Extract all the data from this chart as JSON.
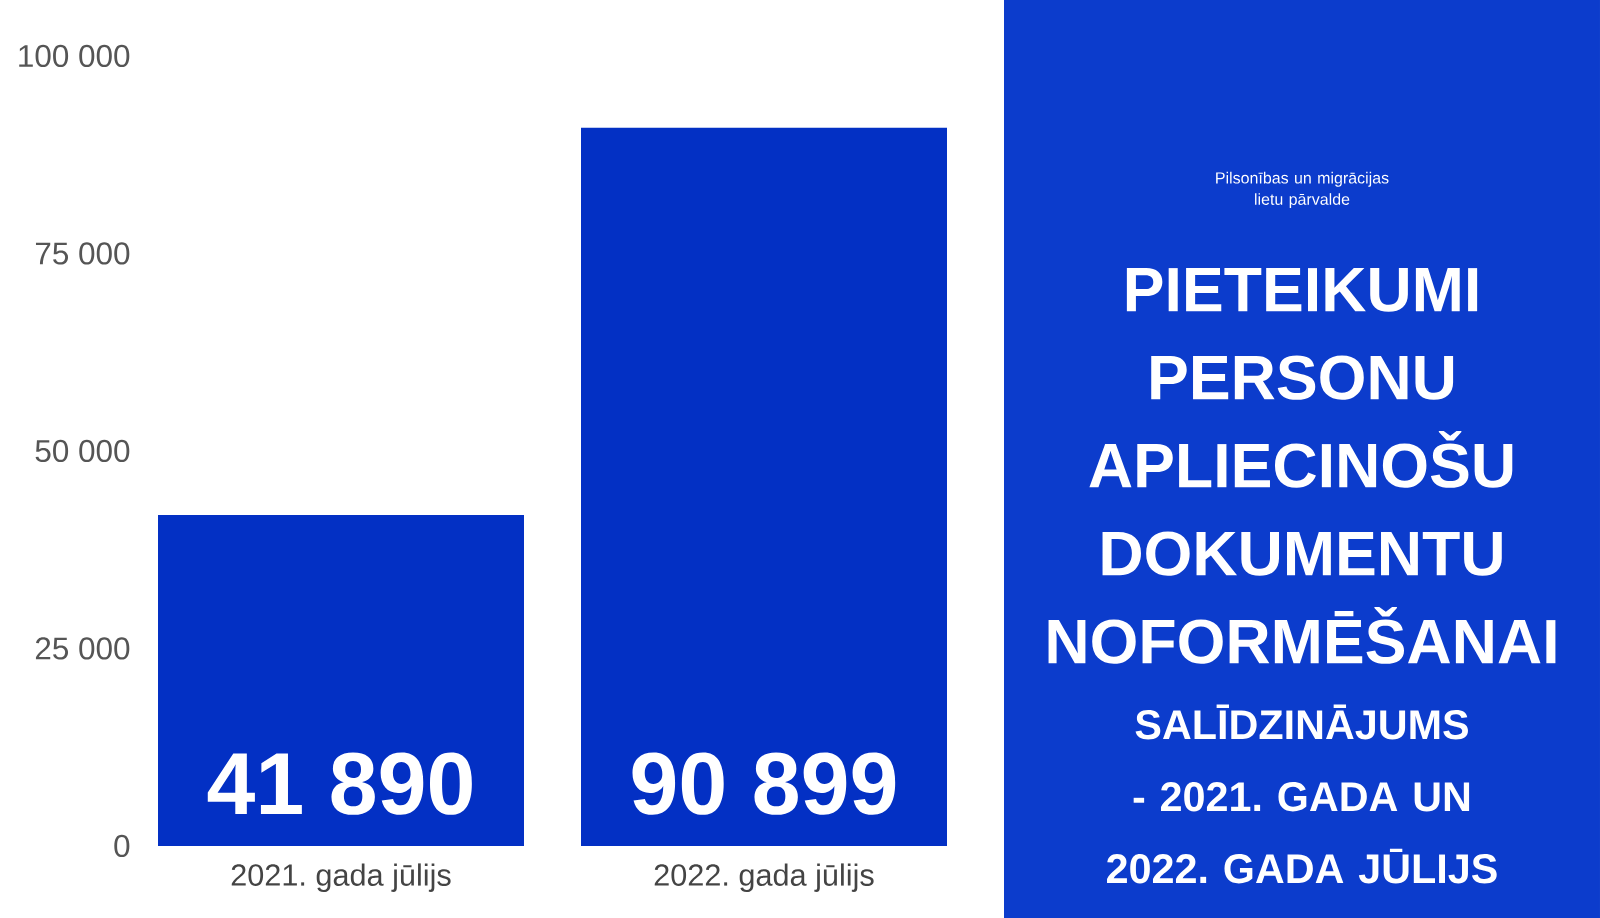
{
  "chart_data": {
    "type": "bar",
    "title": "PIETEIKUMI PERSONU APLIECINOŠU DOKUMENTU NOFORMĒŠANAI",
    "subtitle": "SALĪDZINĀJUMS - 2021. GADA UN 2022. GADA JŪLIJS",
    "annotations": [
      "Pilsonības un migrācijas lietu pārvalde"
    ],
    "categories": [
      "2021. gada jūlijs",
      "2022. gada jūlijs"
    ],
    "values": [
      41890,
      90899
    ],
    "value_labels": [
      "41 890",
      "90 899"
    ],
    "color": "#0330c4",
    "ylim": [
      0,
      100000
    ],
    "yticks": [
      0,
      {
        "value": 25000,
        "label": "25 000"
      },
      {
        "value": 50000,
        "label": "50 000"
      },
      {
        "value": 75000,
        "label": "75 000"
      },
      {
        "value": 100000,
        "label": "100 000"
      }
    ]
  }
}
